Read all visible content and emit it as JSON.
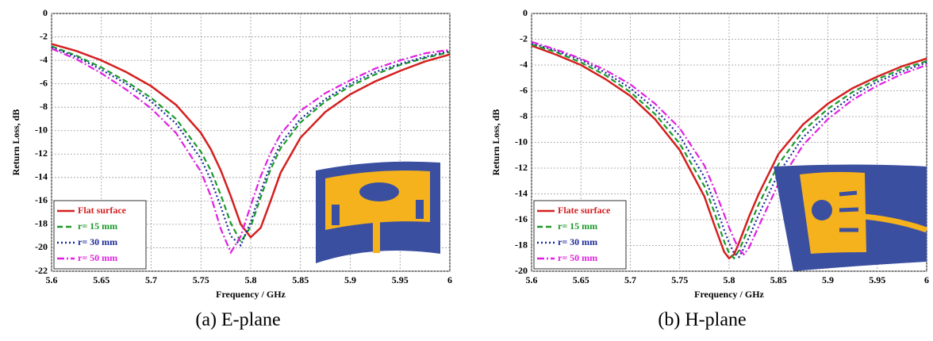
{
  "chart_data": [
    {
      "type": "line",
      "caption": "(a) E-plane",
      "xlabel": "Frequency / GHz",
      "ylabel": "Return Loss, dB",
      "xlim": [
        5.6,
        6
      ],
      "xticks": [
        5.6,
        5.65,
        5.7,
        5.75,
        5.8,
        5.85,
        5.9,
        5.95,
        6
      ],
      "ylim": [
        -22,
        0
      ],
      "yticks": [
        0,
        -2,
        -4,
        -6,
        -8,
        -10,
        -12,
        -14,
        -16,
        -18,
        -20,
        -22
      ],
      "grid": true,
      "legend": "lower left",
      "x": [
        5.6,
        5.625,
        5.65,
        5.675,
        5.7,
        5.725,
        5.75,
        5.76,
        5.77,
        5.78,
        5.79,
        5.8,
        5.81,
        5.82,
        5.83,
        5.85,
        5.875,
        5.9,
        5.925,
        5.95,
        5.975,
        6
      ],
      "series": [
        {
          "name": "Flat surface",
          "color": "#d42020",
          "dash": "solid",
          "values": [
            -2.6,
            -3.2,
            -4.0,
            -5.0,
            -6.2,
            -7.8,
            -10.2,
            -11.6,
            -13.4,
            -15.6,
            -18.0,
            -19.1,
            -18.3,
            -16.0,
            -13.6,
            -10.6,
            -8.4,
            -6.9,
            -5.8,
            -4.9,
            -4.1,
            -3.5
          ]
        },
        {
          "name": "r= 15 mm",
          "color": "#1a9a2a",
          "dash": "dashed",
          "values": [
            -2.8,
            -3.6,
            -4.6,
            -5.8,
            -7.2,
            -9.0,
            -11.8,
            -13.4,
            -15.5,
            -17.9,
            -19.5,
            -18.2,
            -15.7,
            -13.3,
            -11.5,
            -9.3,
            -7.5,
            -6.2,
            -5.2,
            -4.4,
            -3.8,
            -3.3
          ]
        },
        {
          "name": "r= 30 mm",
          "color": "#1a2a9a",
          "dash": "dotted",
          "values": [
            -2.9,
            -3.7,
            -4.8,
            -6.0,
            -7.5,
            -9.4,
            -12.4,
            -14.2,
            -16.5,
            -19.0,
            -19.8,
            -17.8,
            -15.2,
            -12.9,
            -11.1,
            -9.0,
            -7.3,
            -6.0,
            -5.0,
            -4.3,
            -3.7,
            -3.2
          ]
        },
        {
          "name": "r= 50 mm",
          "color": "#e020e0",
          "dash": "dashdot",
          "values": [
            -3.0,
            -3.9,
            -5.1,
            -6.5,
            -8.1,
            -10.2,
            -13.5,
            -15.6,
            -18.4,
            -20.4,
            -19.0,
            -16.4,
            -13.9,
            -11.9,
            -10.3,
            -8.3,
            -6.8,
            -5.7,
            -4.7,
            -4.0,
            -3.4,
            -3.1
          ]
        }
      ]
    },
    {
      "type": "line",
      "caption": "(b) H-plane",
      "xlabel": "Frequency / GHz",
      "ylabel": "Return Loss, dB",
      "xlim": [
        5.6,
        6
      ],
      "xticks": [
        5.6,
        5.65,
        5.7,
        5.75,
        5.8,
        5.85,
        5.9,
        5.95,
        6
      ],
      "ylim": [
        -20,
        0
      ],
      "yticks": [
        0,
        -2,
        -4,
        -6,
        -8,
        -10,
        -12,
        -14,
        -16,
        -18,
        -20
      ],
      "grid": true,
      "legend": "lower left",
      "x": [
        5.6,
        5.625,
        5.65,
        5.675,
        5.7,
        5.725,
        5.75,
        5.775,
        5.785,
        5.795,
        5.8,
        5.805,
        5.81,
        5.815,
        5.82,
        5.83,
        5.85,
        5.875,
        5.9,
        5.925,
        5.95,
        5.975,
        6
      ],
      "series": [
        {
          "name": "Flate surface",
          "color": "#d42020",
          "dash": "solid",
          "values": [
            -2.5,
            -3.2,
            -4.0,
            -5.1,
            -6.4,
            -8.2,
            -10.6,
            -14.2,
            -16.4,
            -18.5,
            -19.0,
            -18.7,
            -17.8,
            -16.8,
            -15.8,
            -14.0,
            -10.9,
            -8.6,
            -7.0,
            -5.8,
            -4.9,
            -4.1,
            -3.5
          ]
        },
        {
          "name": "r= 15 mm",
          "color": "#1a9a2a",
          "dash": "dashed",
          "values": [
            -2.4,
            -3.0,
            -3.8,
            -4.8,
            -6.1,
            -7.8,
            -10.1,
            -13.4,
            -15.4,
            -17.7,
            -18.6,
            -19.0,
            -18.4,
            -17.5,
            -16.6,
            -14.8,
            -11.7,
            -9.1,
            -7.4,
            -6.1,
            -5.1,
            -4.3,
            -3.7
          ]
        },
        {
          "name": "r= 30 mm",
          "color": "#1a2a9a",
          "dash": "dotted",
          "values": [
            -2.3,
            -2.9,
            -3.6,
            -4.6,
            -5.8,
            -7.4,
            -9.5,
            -12.7,
            -14.6,
            -16.8,
            -17.8,
            -18.6,
            -18.9,
            -18.2,
            -17.4,
            -15.6,
            -12.4,
            -9.6,
            -7.8,
            -6.4,
            -5.3,
            -4.5,
            -3.8
          ]
        },
        {
          "name": "r= 50 mm",
          "color": "#e020e0",
          "dash": "dashdot",
          "values": [
            -2.2,
            -2.8,
            -3.5,
            -4.4,
            -5.5,
            -7.0,
            -8.9,
            -11.8,
            -13.6,
            -15.6,
            -16.6,
            -17.5,
            -18.3,
            -18.7,
            -18.2,
            -16.5,
            -13.2,
            -10.2,
            -8.2,
            -6.7,
            -5.6,
            -4.7,
            -4.0
          ]
        }
      ]
    }
  ]
}
